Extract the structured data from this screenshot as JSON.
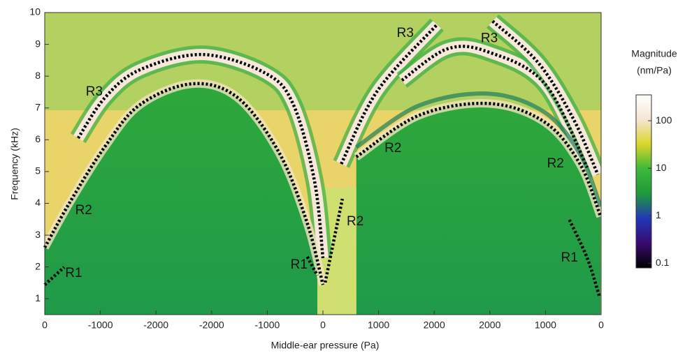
{
  "chart_data": {
    "type": "heatmap",
    "xlabel": "Middle-ear pressure (Pa)",
    "ylabel": "Frequency (kHz)",
    "xlim": [
      0,
      10
    ],
    "xticks": [
      0,
      {
        "value": 1,
        "label": "-1000"
      },
      {
        "value": 2,
        "label": "-2000"
      },
      {
        "value": 3,
        "label": "-2000"
      },
      {
        "value": 4,
        "label": "-1000"
      },
      {
        "value": 5,
        "label": "0"
      },
      {
        "value": 6,
        "label": "1000"
      },
      {
        "value": 7,
        "label": "2000"
      },
      {
        "value": 8,
        "label": "2000"
      },
      {
        "value": 9,
        "label": "1000"
      },
      {
        "value": 10,
        "label": "0"
      }
    ],
    "ylim": [
      0.5,
      10
    ],
    "yticks": [
      1,
      2,
      3,
      4,
      5,
      6,
      7,
      8,
      9,
      10
    ],
    "colorbar": {
      "label": [
        "Magnitude",
        "(nm/Pa)"
      ],
      "log": true,
      "clim": [
        0.08,
        350
      ],
      "ticks": [
        0.1,
        1,
        10,
        100
      ],
      "colors": [
        "#000000",
        "#3a0a6e",
        "#2038b8",
        "#1f9a3a",
        "#3cb83a",
        "#d8d628",
        "#f6e6d2",
        "#ffffff"
      ]
    },
    "curves": [
      {
        "x": [
          0,
          0.35
        ],
        "y": [
          1.44,
          1.99
        ]
      },
      {
        "x": [
          0,
          0.45,
          1.08,
          1.71,
          2.65,
          3.47,
          4.22,
          4.72,
          5.0
        ],
        "y": [
          2.61,
          4.03,
          5.78,
          7.1,
          7.76,
          7.32,
          5.57,
          3.37,
          1.44
        ]
      },
      {
        "x": [
          0.6,
          1.08,
          1.71,
          2.84,
          3.97,
          4.47,
          4.85,
          5.0
        ],
        "y": [
          6.05,
          7.32,
          8.2,
          8.68,
          8.09,
          7.1,
          4.69,
          2.28
        ]
      },
      {
        "x": [
          4.72,
          4.9
        ],
        "y": [
          2.32,
          1.73
        ]
      },
      {
        "x": [
          5.04,
          5.35
        ],
        "y": [
          1.51,
          4.14
        ]
      },
      {
        "x": [
          5.33,
          5.98,
          7.05
        ],
        "y": [
          5.24,
          7.54,
          9.62
        ]
      },
      {
        "x": [
          5.6,
          6.73,
          7.99,
          8.99,
          9.62,
          9.99
        ],
        "y": [
          5.46,
          6.77,
          7.14,
          6.55,
          5.24,
          3.59
        ]
      },
      {
        "x": [
          6.42,
          7.24,
          7.99,
          8.99,
          9.75
        ],
        "y": [
          7.87,
          8.86,
          8.75,
          7.76,
          5.13
        ]
      },
      {
        "x": [
          8.05,
          8.87,
          9.5,
          9.94
        ],
        "y": [
          9.73,
          8.42,
          6.66,
          4.91
        ]
      },
      {
        "x": [
          9.43,
          9.75,
          9.97
        ],
        "y": [
          3.48,
          2.28,
          1.07
        ]
      }
    ],
    "annotations": [
      {
        "text": "R1",
        "x": 0.52,
        "y": 1.79
      },
      {
        "text": "R2",
        "x": 0.7,
        "y": 3.77
      },
      {
        "text": "R3",
        "x": 0.89,
        "y": 7.5
      },
      {
        "text": "R1",
        "x": 4.57,
        "y": 2.06
      },
      {
        "text": "R2",
        "x": 5.58,
        "y": 3.42
      },
      {
        "text": "R3",
        "x": 6.48,
        "y": 9.34
      },
      {
        "text": "R2",
        "x": 6.26,
        "y": 5.72
      },
      {
        "text": "R3",
        "x": 7.99,
        "y": 9.18
      },
      {
        "text": "R2",
        "x": 9.18,
        "y": 5.24
      },
      {
        "text": "R1",
        "x": 9.43,
        "y": 2.28
      }
    ]
  }
}
